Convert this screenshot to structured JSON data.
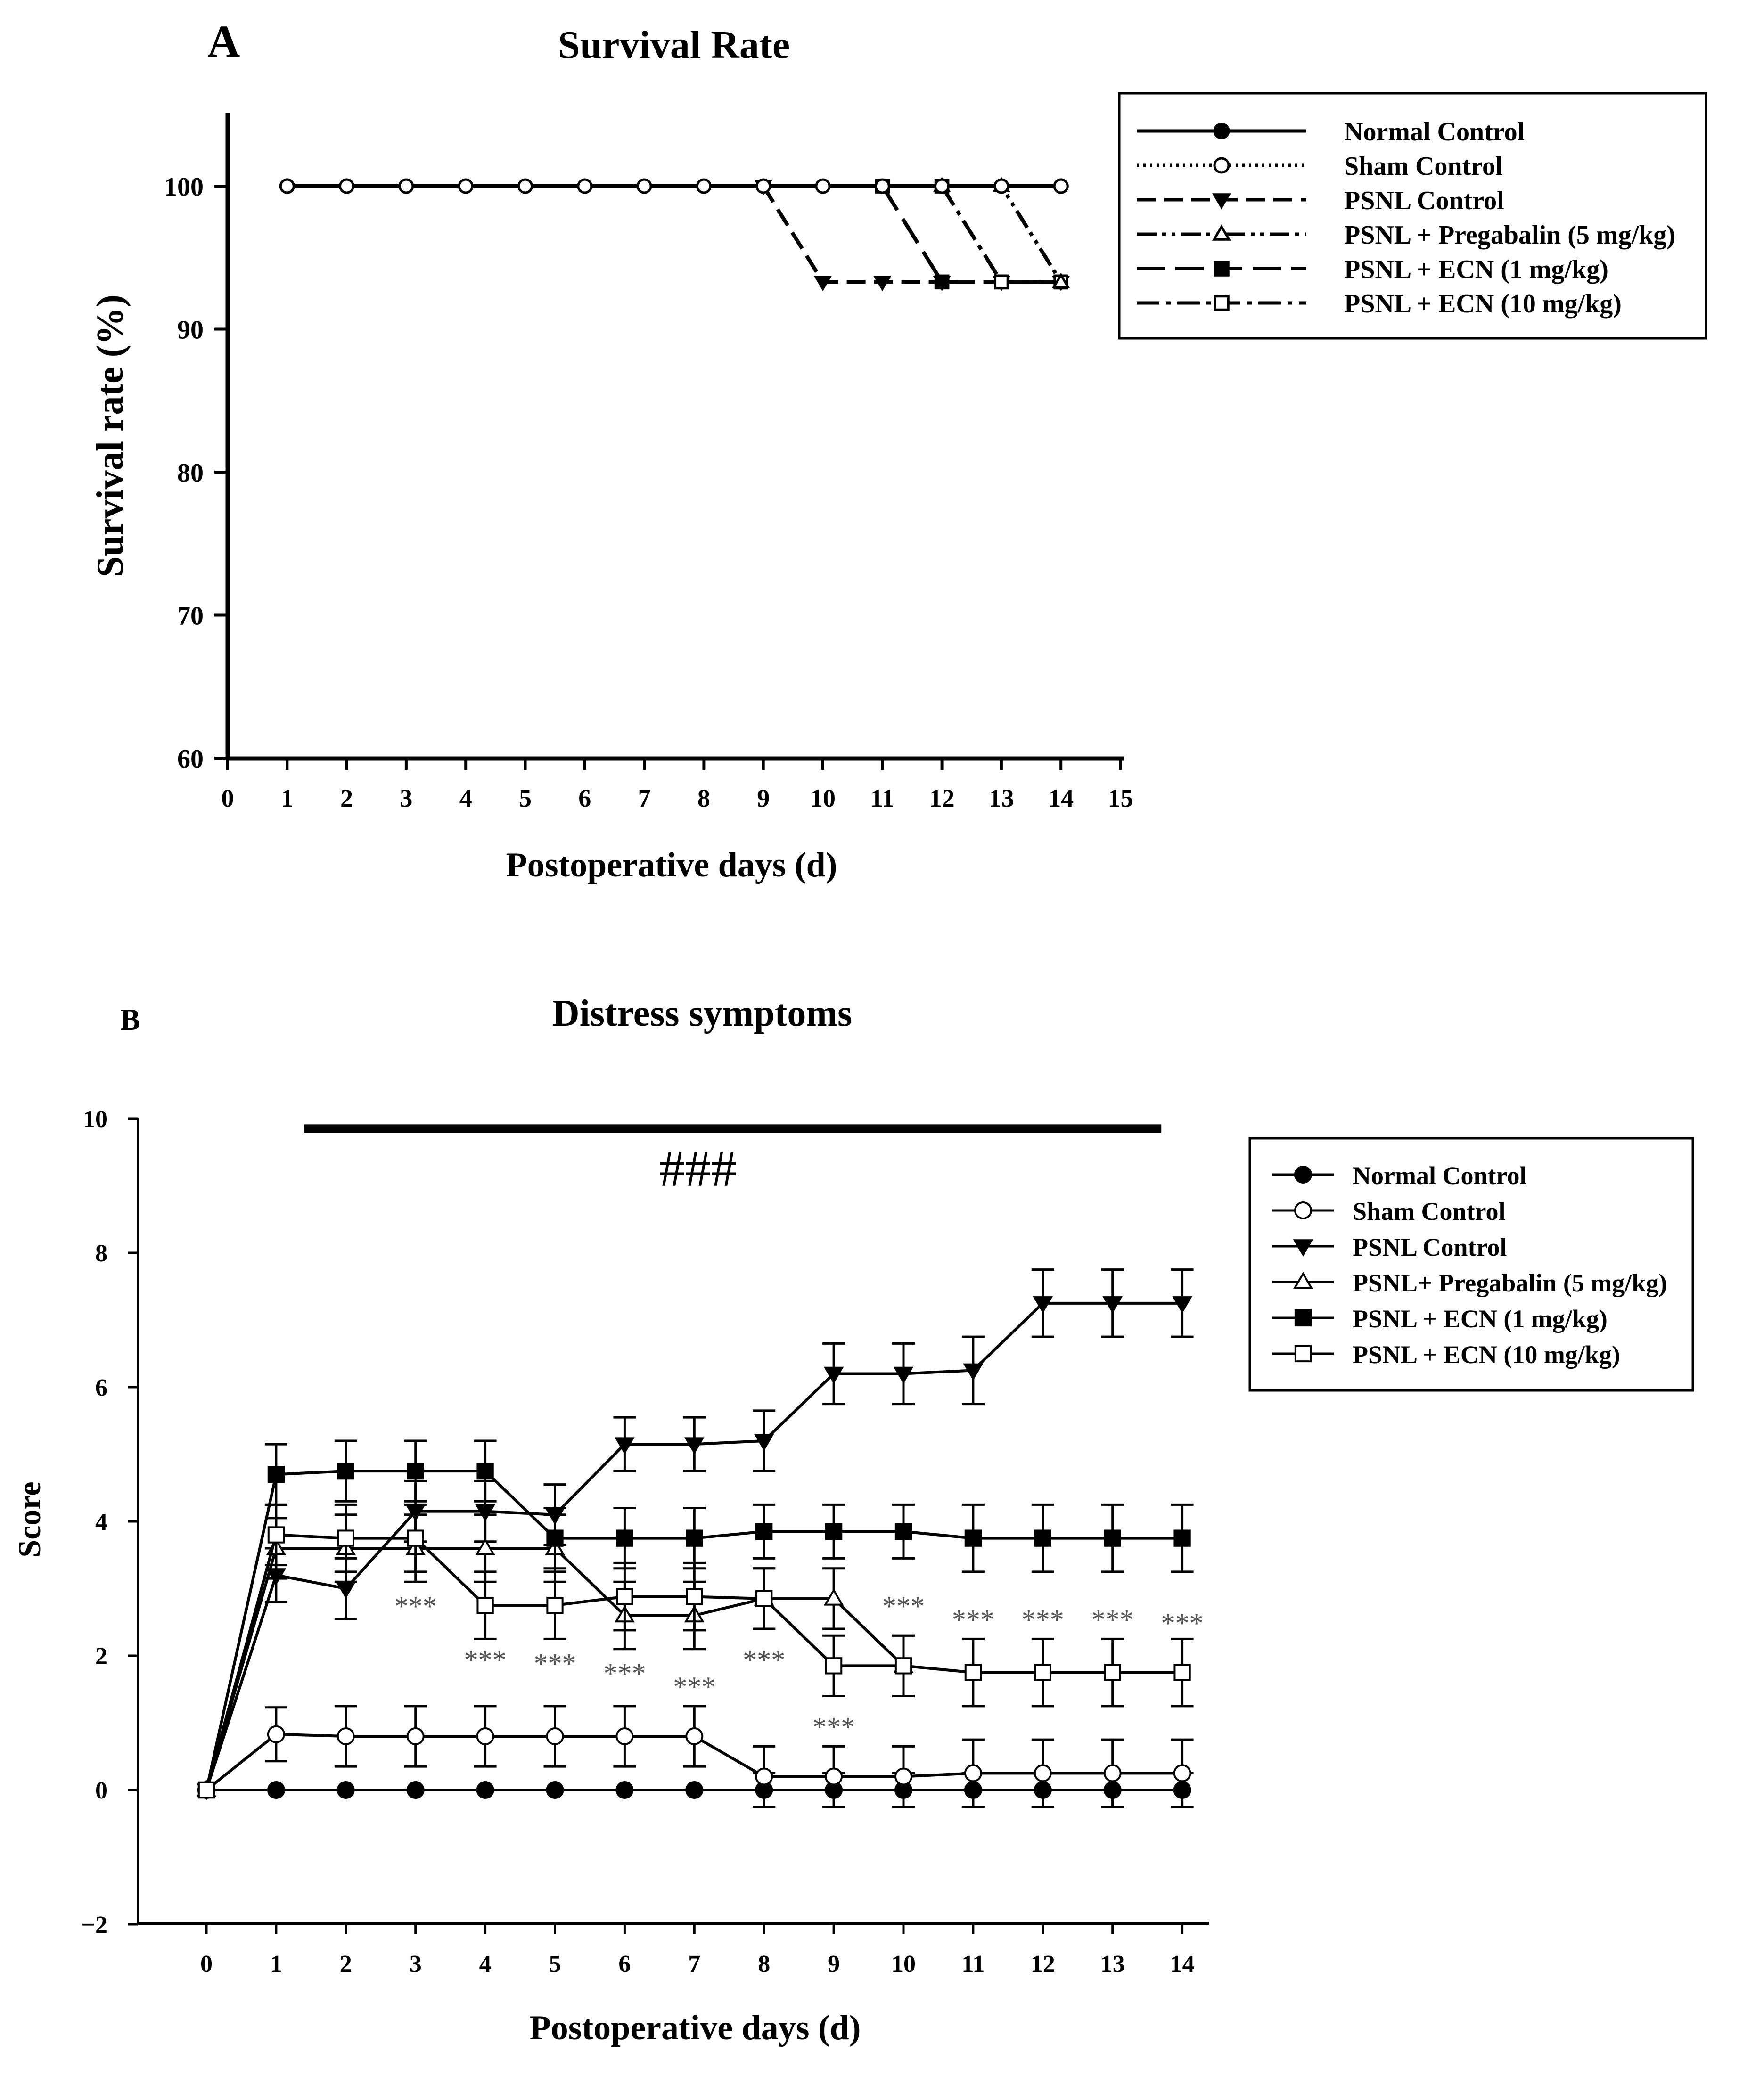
{
  "chart_data": [
    {
      "panel": "A",
      "type": "line",
      "title": "Survival Rate",
      "xlabel": "Postoperative days (d)",
      "ylabel": "Survival rate (%)",
      "xlim": [
        0,
        15
      ],
      "ylim": [
        60,
        105
      ],
      "xticks": [
        0,
        1,
        2,
        3,
        4,
        5,
        6,
        7,
        8,
        9,
        10,
        11,
        12,
        13,
        14,
        15
      ],
      "yticks": [
        60,
        70,
        80,
        90,
        100
      ],
      "legend": "top-right",
      "series": [
        {
          "name": "Normal Control",
          "style": "solid",
          "marker": "circle-filled",
          "x": [
            1,
            14
          ],
          "values": [
            100,
            100
          ]
        },
        {
          "name": "Sham Control",
          "style": "dotted",
          "marker": "circle-open",
          "x": [
            1,
            2,
            3,
            4,
            5,
            6,
            7,
            8,
            9,
            10,
            11,
            12,
            13,
            14
          ],
          "values": [
            100,
            100,
            100,
            100,
            100,
            100,
            100,
            100,
            100,
            100,
            100,
            100,
            100,
            100
          ]
        },
        {
          "name": "PSNL Control",
          "style": "dashed",
          "marker": "triangle-down-filled",
          "x": [
            9,
            10,
            11,
            12,
            13,
            14
          ],
          "values": [
            100,
            93.3,
            93.3,
            93.3,
            93.3,
            93.3
          ]
        },
        {
          "name": "PSNL + Pregabalin (5 mg/kg)",
          "style": "dash-dot-dot",
          "marker": "triangle-up-open",
          "x": [
            12,
            13,
            14
          ],
          "values": [
            100,
            100,
            93.3
          ]
        },
        {
          "name": "PSNL + ECN (1 mg/kg)",
          "style": "long-dash",
          "marker": "square-filled",
          "x": [
            11,
            12,
            13,
            14
          ],
          "values": [
            100,
            93.3,
            93.3,
            93.3
          ]
        },
        {
          "name": "PSNL + ECN (10 mg/kg)",
          "style": "dash-dot",
          "marker": "square-open",
          "x": [
            12,
            13,
            14
          ],
          "values": [
            100,
            93.3,
            93.3
          ]
        }
      ]
    },
    {
      "panel": "B",
      "type": "line",
      "title": "Distress symptoms",
      "xlabel": "Postoperative days (d)",
      "ylabel": "Score",
      "xlim": [
        -0.6,
        14.4
      ],
      "ylim": [
        -2,
        10
      ],
      "xticks": [
        0,
        1,
        2,
        3,
        4,
        5,
        6,
        7,
        8,
        9,
        10,
        11,
        12,
        13,
        14
      ],
      "yticks": [
        -2,
        0,
        2,
        4,
        6,
        8,
        10
      ],
      "ytick_labels": [
        "−2",
        "0",
        "2",
        "4",
        "6",
        "8",
        "10"
      ],
      "legend": "top-right",
      "annotation": {
        "text": "###",
        "bar_from_day": 1.4,
        "bar_to_day": 13.7,
        "bar_value": 9.85,
        "label_value": 9.0
      },
      "series": [
        {
          "name": "Normal Control",
          "marker": "circle-filled",
          "x": [
            0,
            1,
            2,
            3,
            4,
            5,
            6,
            7,
            8,
            9,
            10,
            11,
            12,
            13,
            14
          ],
          "values": [
            0,
            0,
            0,
            0,
            0,
            0,
            0,
            0,
            0,
            0,
            0,
            0,
            0,
            0,
            0
          ],
          "errors": [
            0,
            0,
            0,
            0,
            0,
            0,
            0,
            0,
            0.25,
            0.25,
            0.25,
            0.25,
            0.25,
            0.25,
            0.25
          ]
        },
        {
          "name": "Sham Control",
          "marker": "circle-open",
          "x": [
            0,
            1,
            2,
            3,
            4,
            5,
            6,
            7,
            8,
            9,
            10,
            11,
            12,
            13,
            14
          ],
          "values": [
            0,
            0.83,
            0.8,
            0.8,
            0.8,
            0.8,
            0.8,
            0.8,
            0.2,
            0.2,
            0.2,
            0.25,
            0.25,
            0.25,
            0.25
          ],
          "errors": [
            0,
            0.4,
            0.45,
            0.45,
            0.45,
            0.45,
            0.45,
            0.45,
            0.45,
            0.45,
            0.45,
            0.5,
            0.5,
            0.5,
            0.5
          ]
        },
        {
          "name": "PSNL Control",
          "marker": "triangle-down-filled",
          "x": [
            0,
            1,
            2,
            3,
            4,
            5,
            6,
            7,
            8,
            9,
            10,
            11,
            12,
            13,
            14
          ],
          "values": [
            0,
            3.2,
            3.0,
            4.15,
            4.15,
            4.1,
            5.15,
            5.15,
            5.2,
            6.2,
            6.2,
            6.25,
            7.25,
            7.25,
            7.25
          ],
          "errors": [
            0,
            0.4,
            0.45,
            0.45,
            0.45,
            0.45,
            0.4,
            0.4,
            0.45,
            0.45,
            0.45,
            0.5,
            0.5,
            0.5,
            0.5
          ]
        },
        {
          "name": "PSNL+ Pregabalin (5 mg/kg)",
          "marker": "triangle-up-open",
          "x": [
            0,
            1,
            2,
            3,
            4,
            5,
            6,
            7,
            8,
            9,
            10
          ],
          "values": [
            0,
            3.6,
            3.6,
            3.6,
            3.6,
            3.6,
            2.6,
            2.6,
            2.85,
            2.85,
            1.85
          ],
          "errors": [
            0,
            0.45,
            0.5,
            0.5,
            0.5,
            0.5,
            0.5,
            0.5,
            0.45,
            0.45,
            0.45
          ]
        },
        {
          "name": "PSNL + ECN (1 mg/kg)",
          "marker": "square-filled",
          "x": [
            0,
            1,
            2,
            3,
            4,
            5,
            6,
            7,
            8,
            9,
            10,
            11,
            12,
            13,
            14
          ],
          "values": [
            0,
            4.7,
            4.75,
            4.75,
            4.75,
            3.75,
            3.75,
            3.75,
            3.85,
            3.85,
            3.85,
            3.75,
            3.75,
            3.75,
            3.75
          ],
          "errors": [
            0,
            0.45,
            0.45,
            0.45,
            0.45,
            0.45,
            0.45,
            0.45,
            0.4,
            0.4,
            0.4,
            0.5,
            0.5,
            0.5,
            0.5
          ]
        },
        {
          "name": "PSNL + ECN (10 mg/kg)",
          "marker": "square-open",
          "x": [
            0,
            1,
            2,
            3,
            4,
            5,
            6,
            7,
            8,
            9,
            10,
            11,
            12,
            13,
            14
          ],
          "values": [
            0,
            3.8,
            3.75,
            3.75,
            2.75,
            2.75,
            2.88,
            2.88,
            2.85,
            1.85,
            1.85,
            1.75,
            1.75,
            1.75,
            1.75
          ],
          "errors": [
            0,
            0.45,
            0.5,
            0.5,
            0.5,
            0.5,
            0.5,
            0.5,
            0.45,
            0.45,
            0.45,
            0.5,
            0.5,
            0.5,
            0.5
          ]
        }
      ],
      "significance_marks": [
        {
          "text": "***",
          "day": 3,
          "value": 2.75
        },
        {
          "text": "***",
          "day": 4,
          "value": 1.95
        },
        {
          "text": "***",
          "day": 5,
          "value": 1.9
        },
        {
          "text": "***",
          "day": 6,
          "value": 1.75
        },
        {
          "text": "***",
          "day": 7,
          "value": 1.55
        },
        {
          "text": "***",
          "day": 8,
          "value": 1.95
        },
        {
          "text": "***",
          "day": 9,
          "value": 0.95
        },
        {
          "text": "***",
          "day": 10,
          "value": 2.75
        },
        {
          "text": "***",
          "day": 11,
          "value": 2.55
        },
        {
          "text": "***",
          "day": 12,
          "value": 2.55
        },
        {
          "text": "***",
          "day": 13,
          "value": 2.55
        },
        {
          "text": "***",
          "day": 14,
          "value": 2.5
        }
      ]
    }
  ]
}
